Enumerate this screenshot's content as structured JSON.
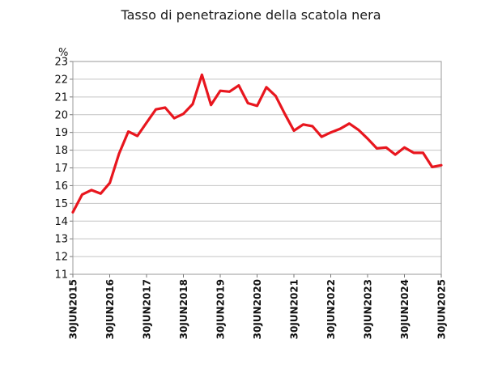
{
  "chart_data": {
    "type": "line",
    "title": "Tasso di penetrazione della scatola nera",
    "ylabel": "%",
    "xlabel": "",
    "ylim": [
      11,
      23
    ],
    "yticks": [
      11,
      12,
      13,
      14,
      15,
      16,
      17,
      18,
      19,
      20,
      21,
      22,
      23
    ],
    "xticks": [
      "30JUN2015",
      "30JUN2016",
      "30JUN2017",
      "30JUN2018",
      "30JUN2019",
      "30JUN2020",
      "30JUN2021",
      "30JUN2022",
      "30JUN2023",
      "30JUN2024",
      "30JUN2025"
    ],
    "grid": true,
    "line_color": "#e8161e",
    "x": [
      "2015-06-30",
      "2015-09-30",
      "2015-12-31",
      "2016-03-31",
      "2016-06-30",
      "2016-09-30",
      "2016-12-31",
      "2017-03-31",
      "2017-06-30",
      "2017-09-30",
      "2017-12-31",
      "2018-03-31",
      "2018-06-30",
      "2018-09-30",
      "2018-12-31",
      "2019-03-31",
      "2019-06-30",
      "2019-09-30",
      "2019-12-31",
      "2020-03-31",
      "2020-06-30",
      "2020-09-30",
      "2020-12-31",
      "2021-03-31",
      "2021-06-30",
      "2021-09-30",
      "2021-12-31",
      "2022-03-31",
      "2022-06-30",
      "2022-09-30",
      "2022-12-31",
      "2023-03-31",
      "2023-06-30",
      "2023-09-30",
      "2023-12-31",
      "2024-03-31",
      "2024-06-30",
      "2024-09-30",
      "2024-12-31",
      "2025-03-31",
      "2025-06-30"
    ],
    "series": [
      {
        "values": [
          14.5,
          15.5,
          15.75,
          15.55,
          16.15,
          17.8,
          19.05,
          18.8,
          19.55,
          20.3,
          20.4,
          19.8,
          20.05,
          20.6,
          22.25,
          20.55,
          21.35,
          21.3,
          21.65,
          20.65,
          20.5,
          21.55,
          21.05,
          20.05,
          19.1,
          19.45,
          19.35,
          18.75,
          19.0,
          19.2,
          19.5,
          19.15,
          18.65,
          18.1,
          18.15,
          17.75,
          18.15,
          17.85,
          17.85,
          17.05,
          17.15
        ]
      }
    ]
  }
}
